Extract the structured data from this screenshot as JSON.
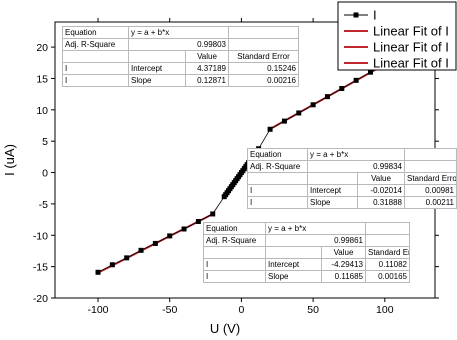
{
  "chart_data": {
    "type": "scatter",
    "xlabel": "U (V)",
    "ylabel": "I (uA)",
    "xlim": [
      -130,
      135
    ],
    "ylim": [
      -20,
      24
    ],
    "xticks": [
      -100,
      -50,
      0,
      50,
      100
    ],
    "yticks": [
      -20,
      -15,
      -10,
      -5,
      0,
      5,
      10,
      15,
      20
    ],
    "legend_position": "top-right",
    "series": [
      {
        "name": "I",
        "kind": "scatter-with-line",
        "color": "#000000",
        "x": [
          -100,
          -90,
          -80,
          -70,
          -60,
          -50,
          -40,
          -30,
          -20,
          -12,
          -11,
          -10,
          -9,
          -8,
          -7,
          -6,
          -5,
          -4,
          -3,
          -2,
          -1,
          0,
          1,
          2,
          3,
          4,
          5,
          6,
          7,
          8,
          9,
          10,
          11,
          12,
          20,
          30,
          40,
          50,
          60,
          70,
          80,
          90,
          100
        ],
        "y": [
          -15.9,
          -14.7,
          -13.6,
          -12.4,
          -11.3,
          -10.1,
          -9.0,
          -7.8,
          -6.6,
          -3.85,
          -3.53,
          -3.21,
          -2.89,
          -2.57,
          -2.25,
          -1.93,
          -1.61,
          -1.29,
          -0.97,
          -0.66,
          -0.34,
          0.0,
          0.3,
          0.62,
          0.94,
          1.26,
          1.58,
          1.89,
          2.21,
          2.53,
          2.85,
          3.17,
          3.49,
          3.8,
          6.9,
          8.2,
          9.5,
          10.8,
          12.1,
          13.4,
          14.7,
          16.0,
          17.2
        ]
      },
      {
        "name": "Linear Fit of I",
        "kind": "fit",
        "color": "#c0262d",
        "intercept": 4.37189,
        "slope": 0.12871,
        "x_range": [
          20,
          100
        ]
      },
      {
        "name": "Linear Fit of I",
        "kind": "fit",
        "color": "#c0262d",
        "intercept": -0.02014,
        "slope": 0.31888,
        "x_range": [
          -12,
          12
        ]
      },
      {
        "name": "Linear Fit of I",
        "kind": "fit",
        "color": "#c0262d",
        "intercept": -4.29413,
        "slope": 0.11685,
        "x_range": [
          -100,
          -20
        ]
      }
    ],
    "fit_tables": [
      {
        "equation_label": "Equation",
        "equation": "y = a + b*x",
        "r2_label": "Adj. R-Square",
        "r2": "0.99803",
        "value_header": "Value",
        "error_header": "Standard Error",
        "rows": [
          {
            "var": "I",
            "param": "Intercept",
            "value": "4.37189",
            "error": "0.15246"
          },
          {
            "var": "I",
            "param": "Slope",
            "value": "0.12871",
            "error": "0.00216"
          }
        ]
      },
      {
        "equation_label": "Equation",
        "equation": "y = a + b*x",
        "r2_label": "Adj. R-Square",
        "r2": "0.99834",
        "value_header": "Value",
        "error_header": "Standard Error",
        "rows": [
          {
            "var": "I",
            "param": "Intercept",
            "value": "-0.02014",
            "error": "0.00981"
          },
          {
            "var": "I",
            "param": "Slope",
            "value": "0.31888",
            "error": "0.00211"
          }
        ]
      },
      {
        "equation_label": "Equation",
        "equation": "y = a + b*x",
        "r2_label": "Adj. R-Square",
        "r2": "0.99861",
        "value_header": "Value",
        "error_header": "Standard Error",
        "rows": [
          {
            "var": "I",
            "param": "Intercept",
            "value": "-4.29413",
            "error": "0.11082"
          },
          {
            "var": "I",
            "param": "Slope",
            "value": "0.11685",
            "error": "0.00165"
          }
        ]
      }
    ]
  }
}
